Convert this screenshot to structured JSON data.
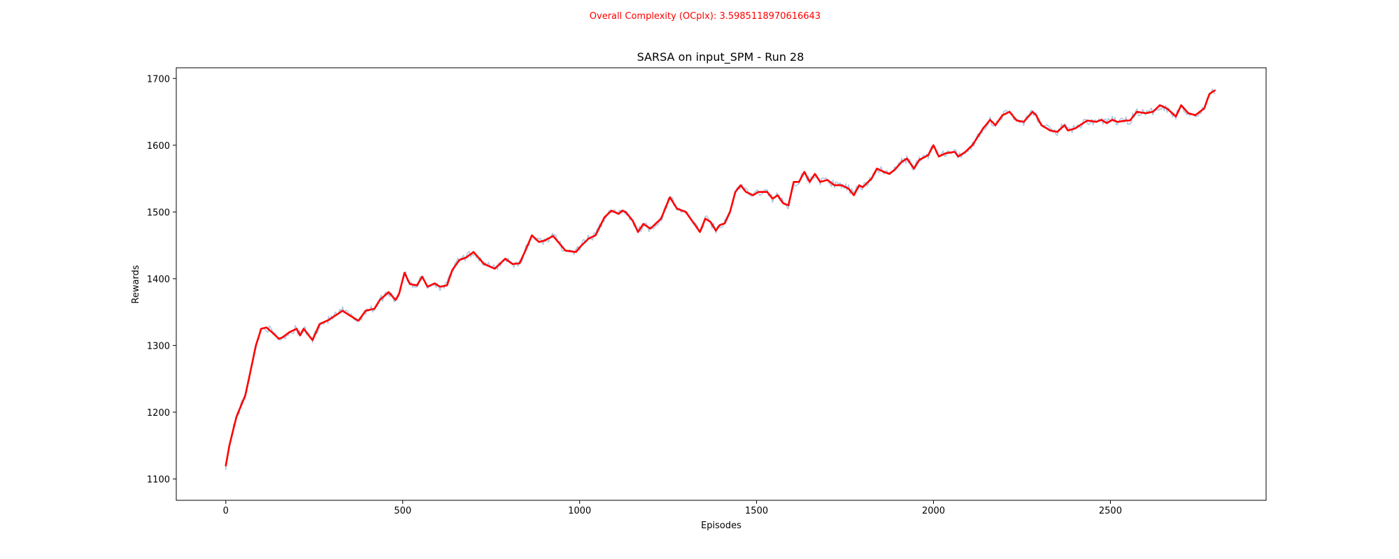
{
  "figure": {
    "suptitle": "Overall Complexity (OCplx): 3.5985118970616643",
    "suptitle_color": "#ff0000"
  },
  "chart_data": {
    "type": "line",
    "title": "SARSA on input_SPM - Run 28",
    "xlabel": "Episodes",
    "ylabel": "Rewards",
    "xlim": [
      -140,
      2940
    ],
    "ylim": [
      1068,
      1716
    ],
    "xticks": [
      0,
      500,
      1000,
      1500,
      2000,
      2500
    ],
    "yticks": [
      1100,
      1200,
      1300,
      1400,
      1500,
      1600,
      1700
    ],
    "grid": false,
    "legend": "none",
    "series": [
      {
        "role": "raw",
        "color": "#aac4e0",
        "noise_amplitude": 6,
        "x": [
          0,
          10,
          30,
          55,
          70,
          85,
          100,
          115,
          130,
          150,
          160,
          180,
          200,
          210,
          220,
          245,
          265,
          290,
          330,
          350,
          375,
          395,
          420,
          435,
          460,
          480,
          490,
          505,
          520,
          540,
          555,
          570,
          590,
          605,
          625,
          640,
          660,
          680,
          700,
          730,
          760,
          790,
          810,
          830,
          845,
          865,
          885,
          900,
          925,
          960,
          990,
          1000,
          1025,
          1045,
          1070,
          1090,
          1110,
          1120,
          1130,
          1150,
          1165,
          1180,
          1200,
          1230,
          1255,
          1275,
          1300,
          1340,
          1355,
          1370,
          1385,
          1395,
          1410,
          1425,
          1440,
          1455,
          1470,
          1490,
          1505,
          1530,
          1545,
          1560,
          1575,
          1590,
          1605,
          1620,
          1635,
          1650,
          1665,
          1680,
          1700,
          1720,
          1740,
          1760,
          1775,
          1790,
          1800,
          1825,
          1840,
          1860,
          1875,
          1890,
          1910,
          1925,
          1945,
          1960,
          1985,
          2000,
          2015,
          2035,
          2060,
          2070,
          2090,
          2110,
          2140,
          2160,
          2175,
          2195,
          2215,
          2235,
          2255,
          2280,
          2290,
          2305,
          2330,
          2350,
          2370,
          2380,
          2400,
          2420,
          2435,
          2460,
          2475,
          2490,
          2505,
          2520,
          2545,
          2555,
          2575,
          2600,
          2620,
          2640,
          2660,
          2685,
          2700,
          2720,
          2740,
          2765,
          2780,
          2795
        ],
        "y": [
          1120,
          1150,
          1193,
          1225,
          1262,
          1300,
          1325,
          1327,
          1320,
          1310,
          1312,
          1320,
          1325,
          1315,
          1325,
          1308,
          1332,
          1338,
          1352,
          1345,
          1337,
          1352,
          1355,
          1368,
          1380,
          1368,
          1378,
          1409,
          1392,
          1390,
          1403,
          1388,
          1393,
          1388,
          1390,
          1413,
          1428,
          1432,
          1440,
          1422,
          1415,
          1430,
          1422,
          1423,
          1440,
          1465,
          1455,
          1457,
          1464,
          1442,
          1440,
          1447,
          1460,
          1465,
          1492,
          1502,
          1497,
          1502,
          1500,
          1487,
          1470,
          1482,
          1475,
          1490,
          1522,
          1505,
          1500,
          1470,
          1490,
          1485,
          1472,
          1480,
          1483,
          1500,
          1530,
          1540,
          1530,
          1525,
          1530,
          1530,
          1520,
          1525,
          1513,
          1510,
          1545,
          1545,
          1560,
          1545,
          1557,
          1545,
          1548,
          1540,
          1540,
          1535,
          1525,
          1540,
          1537,
          1550,
          1565,
          1560,
          1557,
          1563,
          1575,
          1580,
          1565,
          1578,
          1585,
          1600,
          1583,
          1588,
          1590,
          1583,
          1590,
          1600,
          1625,
          1638,
          1630,
          1645,
          1650,
          1637,
          1635,
          1650,
          1645,
          1630,
          1622,
          1620,
          1630,
          1622,
          1625,
          1632,
          1637,
          1635,
          1638,
          1633,
          1638,
          1635,
          1637,
          1637,
          1650,
          1648,
          1650,
          1660,
          1655,
          1643,
          1660,
          1648,
          1645,
          1655,
          1677,
          1682
        ]
      },
      {
        "role": "smoothed",
        "color": "#ff0000",
        "x": [
          0,
          10,
          30,
          55,
          70,
          85,
          100,
          115,
          130,
          150,
          160,
          180,
          200,
          210,
          220,
          245,
          265,
          290,
          330,
          350,
          375,
          395,
          420,
          435,
          460,
          480,
          490,
          505,
          520,
          540,
          555,
          570,
          590,
          605,
          625,
          640,
          660,
          680,
          700,
          730,
          760,
          790,
          810,
          830,
          845,
          865,
          885,
          900,
          925,
          960,
          990,
          1000,
          1025,
          1045,
          1070,
          1090,
          1110,
          1120,
          1130,
          1150,
          1165,
          1180,
          1200,
          1230,
          1255,
          1275,
          1300,
          1340,
          1355,
          1370,
          1385,
          1395,
          1410,
          1425,
          1440,
          1455,
          1470,
          1490,
          1505,
          1530,
          1545,
          1560,
          1575,
          1590,
          1605,
          1620,
          1635,
          1650,
          1665,
          1680,
          1700,
          1720,
          1740,
          1760,
          1775,
          1790,
          1800,
          1825,
          1840,
          1860,
          1875,
          1890,
          1910,
          1925,
          1945,
          1960,
          1985,
          2000,
          2015,
          2035,
          2060,
          2070,
          2090,
          2110,
          2140,
          2160,
          2175,
          2195,
          2215,
          2235,
          2255,
          2280,
          2290,
          2305,
          2330,
          2350,
          2370,
          2380,
          2400,
          2420,
          2435,
          2460,
          2475,
          2490,
          2505,
          2520,
          2545,
          2555,
          2575,
          2600,
          2620,
          2640,
          2660,
          2685,
          2700,
          2720,
          2740,
          2765,
          2780,
          2795
        ],
        "y": [
          1120,
          1150,
          1193,
          1225,
          1262,
          1300,
          1325,
          1327,
          1320,
          1310,
          1312,
          1320,
          1325,
          1315,
          1325,
          1308,
          1332,
          1338,
          1352,
          1345,
          1337,
          1352,
          1355,
          1368,
          1380,
          1368,
          1378,
          1409,
          1392,
          1390,
          1403,
          1388,
          1393,
          1388,
          1390,
          1413,
          1428,
          1432,
          1440,
          1422,
          1415,
          1430,
          1422,
          1423,
          1440,
          1465,
          1455,
          1457,
          1464,
          1442,
          1440,
          1447,
          1460,
          1465,
          1492,
          1502,
          1497,
          1502,
          1500,
          1487,
          1470,
          1482,
          1475,
          1490,
          1522,
          1505,
          1500,
          1470,
          1490,
          1485,
          1472,
          1480,
          1483,
          1500,
          1530,
          1540,
          1530,
          1525,
          1530,
          1530,
          1520,
          1525,
          1513,
          1510,
          1545,
          1545,
          1560,
          1545,
          1557,
          1545,
          1548,
          1540,
          1540,
          1535,
          1525,
          1540,
          1537,
          1550,
          1565,
          1560,
          1557,
          1563,
          1575,
          1580,
          1565,
          1578,
          1585,
          1600,
          1583,
          1588,
          1590,
          1583,
          1590,
          1600,
          1625,
          1638,
          1630,
          1645,
          1650,
          1637,
          1635,
          1650,
          1645,
          1630,
          1622,
          1620,
          1630,
          1622,
          1625,
          1632,
          1637,
          1635,
          1638,
          1633,
          1638,
          1635,
          1637,
          1637,
          1650,
          1648,
          1650,
          1660,
          1655,
          1643,
          1660,
          1648,
          1645,
          1655,
          1677,
          1682
        ]
      }
    ]
  }
}
